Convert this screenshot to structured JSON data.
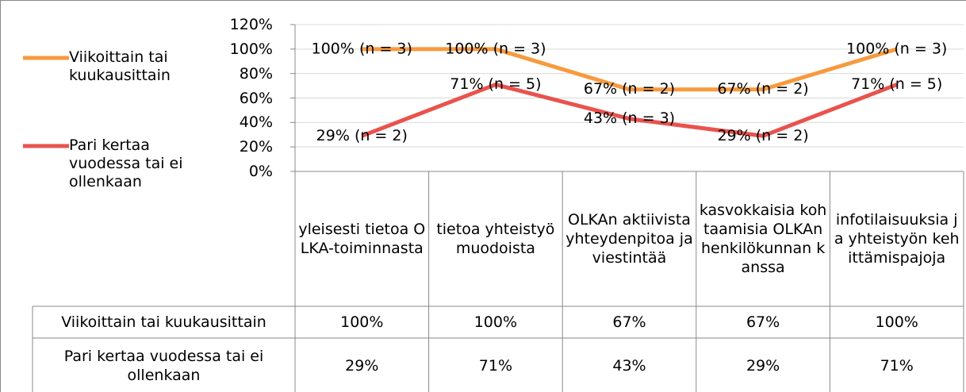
{
  "chart_data": {
    "type": "line",
    "categories": [
      "yleisesti tietoa OLKA-toiminnasta",
      "tietoa yhteistyömuodoista",
      "OLKAn aktiivista yhteydenpitoa ja viestintää",
      "kasvokkaisia kohtaamisia OLKAn henkilökunnan kanssa",
      "infotilaisuuksia ja yhteistyön kehittämispajoja"
    ],
    "series": [
      {
        "name": "Viikoittain tai kuukausittain",
        "color": "#f79a3e",
        "values": [
          100,
          100,
          67,
          67,
          100
        ],
        "value_labels": [
          "100% (n = 3)",
          "100% (n = 3)",
          "67% (n = 2)",
          "67% (n = 2)",
          "100% (n = 3)"
        ],
        "table_labels": [
          "100%",
          "100%",
          "67%",
          "67%",
          "100%"
        ]
      },
      {
        "name": "Pari kertaa vuodessa tai ei ollenkaan",
        "color": "#e9534d",
        "values": [
          29,
          71,
          43,
          29,
          71
        ],
        "value_labels": [
          "29% (n = 2)",
          "71% (n = 5)",
          "43% (n = 3)",
          "29% (n = 2)",
          "71% (n = 5)"
        ],
        "table_labels": [
          "29%",
          "71%",
          "43%",
          "29%",
          "71%"
        ]
      }
    ],
    "ylim": [
      0,
      120
    ],
    "yticks": [
      {
        "value": 0,
        "label": "0%"
      },
      {
        "value": 20,
        "label": "20%"
      },
      {
        "value": 40,
        "label": "40%"
      },
      {
        "value": 60,
        "label": "60%"
      },
      {
        "value": 80,
        "label": "80%"
      },
      {
        "value": 100,
        "label": "100%"
      },
      {
        "value": 120,
        "label": "120%"
      }
    ],
    "grid": true,
    "legend": "left"
  }
}
